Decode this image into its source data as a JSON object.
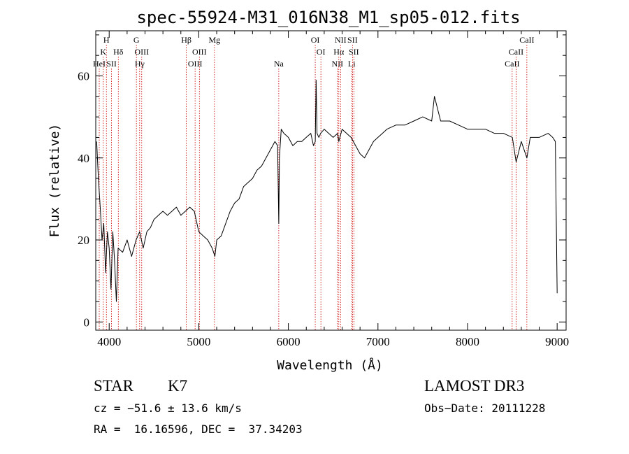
{
  "chart_data": {
    "type": "line",
    "title": "spec-55924-M31_016N38_M1_sp05-012.fits",
    "xlabel": "Wavelength (Å)",
    "ylabel": "Flux (relative)",
    "xlim": [
      3850,
      9100
    ],
    "ylim": [
      -2,
      71
    ],
    "x_ticks": [
      4000,
      5000,
      6000,
      7000,
      8000,
      9000
    ],
    "y_ticks": [
      0,
      20,
      40,
      60
    ],
    "grid": false,
    "line_color": "#000000",
    "marker_color": "#cc0000",
    "series": [
      {
        "name": "flux",
        "x": [
          3860,
          3880,
          3900,
          3920,
          3940,
          3960,
          3980,
          4000,
          4020,
          4040,
          4060,
          4080,
          4100,
          4150,
          4200,
          4250,
          4300,
          4340,
          4380,
          4420,
          4460,
          4500,
          4550,
          4600,
          4650,
          4700,
          4750,
          4800,
          4850,
          4900,
          4950,
          5000,
          5050,
          5100,
          5150,
          5180,
          5200,
          5250,
          5300,
          5350,
          5400,
          5450,
          5500,
          5550,
          5600,
          5650,
          5700,
          5750,
          5800,
          5850,
          5880,
          5893,
          5900,
          5920,
          5950,
          6000,
          6050,
          6100,
          6150,
          6200,
          6250,
          6280,
          6300,
          6310,
          6320,
          6340,
          6360,
          6400,
          6450,
          6500,
          6550,
          6563,
          6600,
          6650,
          6700,
          6750,
          6800,
          6850,
          6900,
          6950,
          7000,
          7050,
          7100,
          7200,
          7300,
          7400,
          7500,
          7600,
          7630,
          7700,
          7800,
          7900,
          8000,
          8100,
          8200,
          8300,
          8400,
          8500,
          8542,
          8600,
          8662,
          8700,
          8800,
          8900,
          8950,
          8980,
          9000
        ],
        "values": [
          44,
          35,
          28,
          20,
          24,
          12,
          22,
          18,
          8,
          22,
          15,
          5,
          18,
          17,
          20,
          16,
          20,
          22,
          18,
          22,
          23,
          25,
          26,
          27,
          26,
          27,
          28,
          26,
          27,
          28,
          27,
          22,
          21,
          20,
          18,
          16,
          20,
          21,
          24,
          27,
          29,
          30,
          33,
          34,
          35,
          37,
          38,
          40,
          42,
          44,
          43,
          24,
          40,
          47,
          46,
          45,
          43,
          44,
          44,
          45,
          46,
          43,
          44,
          59,
          46,
          45,
          46,
          47,
          46,
          45,
          46,
          44,
          47,
          46,
          45,
          43,
          41,
          40,
          42,
          44,
          45,
          46,
          47,
          48,
          48,
          49,
          50,
          49,
          55,
          49,
          49,
          48,
          47,
          47,
          47,
          46,
          46,
          45,
          39,
          44,
          40,
          45,
          45,
          46,
          45,
          44,
          7
        ]
      }
    ],
    "line_markers": [
      {
        "wavelength": 3889,
        "label": "HeI",
        "row": 3
      },
      {
        "wavelength": 3934,
        "label": "K",
        "row": 2
      },
      {
        "wavelength": 3969,
        "label": "H",
        "row": 1
      },
      {
        "wavelength": 4026,
        "label": "SII",
        "row": 3
      },
      {
        "wavelength": 4102,
        "label": "Hδ",
        "row": 2
      },
      {
        "wavelength": 4304,
        "label": "G",
        "row": 1
      },
      {
        "wavelength": 4340,
        "label": "Hγ",
        "row": 3
      },
      {
        "wavelength": 4363,
        "label": "OIII",
        "row": 2
      },
      {
        "wavelength": 4861,
        "label": "Hβ",
        "row": 1
      },
      {
        "wavelength": 4959,
        "label": "OIII",
        "row": 3
      },
      {
        "wavelength": 5007,
        "label": "OIII",
        "row": 2
      },
      {
        "wavelength": 5175,
        "label": "Mg",
        "row": 1
      },
      {
        "wavelength": 5893,
        "label": "Na",
        "row": 3
      },
      {
        "wavelength": 6300,
        "label": "OI",
        "row": 1
      },
      {
        "wavelength": 6363,
        "label": "OI",
        "row": 2
      },
      {
        "wavelength": 6548,
        "label": "NII",
        "row": 3
      },
      {
        "wavelength": 6563,
        "label": "Hα",
        "row": 2
      },
      {
        "wavelength": 6583,
        "label": "NII",
        "row": 1
      },
      {
        "wavelength": 6707,
        "label": "Li",
        "row": 3
      },
      {
        "wavelength": 6716,
        "label": "SII",
        "row": 1
      },
      {
        "wavelength": 6731,
        "label": "SII",
        "row": 2
      },
      {
        "wavelength": 8498,
        "label": "CaII",
        "row": 3
      },
      {
        "wavelength": 8542,
        "label": "CaII",
        "row": 2
      },
      {
        "wavelength": 8662,
        "label": "CaII",
        "row": 1
      }
    ]
  },
  "info": {
    "object_class": "STAR",
    "subclass": "K7",
    "survey": "LAMOST DR3",
    "cz": "cz = −51.6 ± 13.6 km/s",
    "obs_date": "Obs−Date: 20111228",
    "coords": "RA =  16.16596, DEC =  37.34203"
  }
}
